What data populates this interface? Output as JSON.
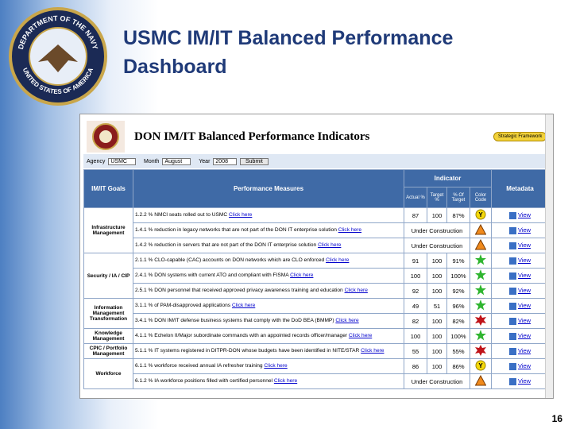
{
  "slide": {
    "title_line1": "USMC IM/IT Balanced Performance",
    "title_line2": "Dashboard",
    "page_number": "16",
    "seal_top": "DEPARTMENT OF THE NAVY",
    "seal_bottom": "UNITED STATES OF AMERICA"
  },
  "dashboard": {
    "title": "DON IM/IT Balanced Performance Indicators",
    "framework_button": "Strategic Framework",
    "filters": {
      "agency_label": "Agency",
      "agency": "USMC",
      "month_label": "Month",
      "month": "August",
      "year_label": "Year",
      "year": "2008",
      "submit": "Submit"
    },
    "headers": {
      "goals": "IM/IT Goals",
      "measures": "Performance Measures",
      "indicator": "Indicator",
      "actual": "Actual %",
      "target": "Target %",
      "pct": "% Of Target",
      "code": "Color Code",
      "metadata": "Metadata"
    },
    "goals": [
      {
        "name": "Infrastructure Management",
        "measures": [
          {
            "measure": "1.2.2 % NMCI seats rolled out to USMC",
            "link": "Click here",
            "actual": 87,
            "target": 100,
            "pct": "87%",
            "indicator": "yellow",
            "code_text": "Y",
            "metadata": "View"
          },
          {
            "measure": "1.4.1 % reduction in legacy networks that are not part of the DON IT enterprise solution",
            "link": "Click here",
            "status": "Under Construction",
            "indicator": "construction",
            "metadata": "View"
          },
          {
            "measure": "1.4.2 % reduction in servers that are not part of the DON IT enterprise solution",
            "link": "Click here",
            "status": "Under Construction",
            "indicator": "construction",
            "metadata": "View"
          }
        ]
      },
      {
        "name": "Security / IA / CIP",
        "measures": [
          {
            "measure": "2.1.1 % CLO-capable (CAC) accounts on DON networks which are CLO enforced",
            "link": "Click here",
            "actual": 91,
            "target": 100,
            "pct": "91%",
            "indicator": "green",
            "metadata": "View"
          },
          {
            "measure": "2.4.1 % DON systems with current ATO and compliant with FISMA",
            "link": "Click here",
            "actual": 100,
            "target": 100,
            "pct": "100%",
            "indicator": "green",
            "metadata": "View"
          },
          {
            "measure": "2.5.1 % DON personnel that received approved privacy awareness training and education",
            "link": "Click here",
            "actual": 92,
            "target": 100,
            "pct": "92%",
            "indicator": "green",
            "metadata": "View"
          }
        ]
      },
      {
        "name": "Information Management Transformation",
        "measures": [
          {
            "measure": "3.1.1 % of PAM-disapproved applications",
            "link": "Click here",
            "actual": 49,
            "target": 51,
            "pct": "96%",
            "indicator": "green",
            "metadata": "View"
          },
          {
            "measure": "3.4.1 % DON IM/IT defense business systems that comply with the DoD BEA (BMMP)",
            "link": "Click here",
            "actual": 82,
            "target": 100,
            "pct": "82%",
            "indicator": "red",
            "metadata": "View"
          }
        ]
      },
      {
        "name": "Knowledge Management",
        "measures": [
          {
            "measure": "4.1.1 % Echelon II/Major subordinate commands with an appointed records officer/manager",
            "link": "Click here",
            "actual": 100,
            "target": 100,
            "pct": "100%",
            "indicator": "green",
            "metadata": "View"
          }
        ]
      },
      {
        "name": "CPIC / Portfolio Management",
        "measures": [
          {
            "measure": "5.1.1 % IT systems registered in DITPR-DON whose budgets have been identified in NITE/STAR",
            "link": "Click here",
            "actual": 55,
            "target": 100,
            "pct": "55%",
            "indicator": "red",
            "metadata": "View"
          }
        ]
      },
      {
        "name": "Workforce",
        "measures": [
          {
            "measure": "6.1.1 % workforce received annual IA refresher training",
            "link": "Click here",
            "actual": 86,
            "target": 100,
            "pct": "86%",
            "indicator": "yellow",
            "code_text": "Y",
            "metadata": "View"
          },
          {
            "measure": "6.1.2 % IA workforce positions filled with certified personnel",
            "link": "Click here",
            "status": "Under Construction",
            "indicator": "construction",
            "metadata": "View"
          }
        ]
      }
    ]
  }
}
